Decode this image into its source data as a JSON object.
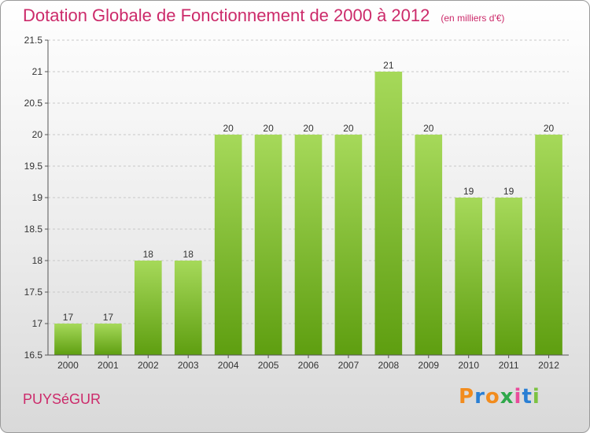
{
  "header": {
    "title": "Dotation Globale de Fonctionnement de 2000 à 2012",
    "subtitle": "(en milliers d'€)"
  },
  "footer": {
    "place": "PUYSéGUR",
    "logo_text": "Proxiti",
    "logo_colors": [
      "#f28c1e",
      "#2a7fd4",
      "#f28c1e",
      "#2ea84a",
      "#e94b9b",
      "#2a7fd4",
      "#7cc242"
    ]
  },
  "colors": {
    "bar_light": "#a6d95a",
    "bar_dark": "#5e9e10",
    "grid": "#c8c8c8",
    "axis_text": "#333333",
    "accent": "#cc2a6a"
  },
  "chart_data": {
    "type": "bar",
    "categories": [
      "2000",
      "2001",
      "2002",
      "2003",
      "2004",
      "2005",
      "2006",
      "2007",
      "2008",
      "2009",
      "2010",
      "2011",
      "2012"
    ],
    "values": [
      17,
      17,
      18,
      18,
      20,
      20,
      20,
      20,
      21,
      20,
      19,
      19,
      20
    ],
    "value_labels": [
      "17",
      "17",
      "18",
      "18",
      "20",
      "20",
      "20",
      "20",
      "21",
      "20",
      "19",
      "19",
      "20"
    ],
    "yticks": [
      "16.5",
      "17",
      "17.5",
      "18",
      "18.5",
      "19",
      "19.5",
      "20",
      "20.5",
      "21",
      "21.5"
    ],
    "ylim": [
      16.5,
      21.5
    ],
    "grid": true
  }
}
